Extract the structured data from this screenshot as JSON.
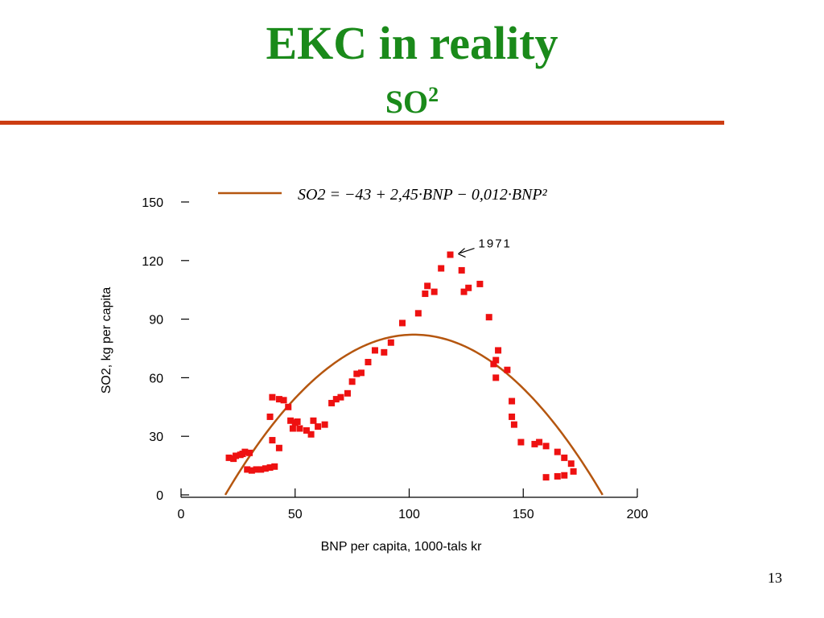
{
  "slide": {
    "title": "EKC in reality",
    "subtitle_base": "SO",
    "subtitle_sup": "2",
    "page_number": "13"
  },
  "colors": {
    "title": "#1a8a1a",
    "rule": "#cc3d12",
    "points": "#ee1111",
    "curve": "#b5560f"
  },
  "chart_data": {
    "type": "scatter",
    "title": "",
    "xlabel": "BNP per capita, 1000-tals kr",
    "ylabel": "SO2, kg per capita",
    "xlim": [
      0,
      200
    ],
    "ylim": [
      0,
      150
    ],
    "x_ticks": [
      "0",
      "50",
      "100",
      "150",
      "200"
    ],
    "y_ticks": [
      "0",
      "30",
      "60",
      "90",
      "120",
      "150"
    ],
    "legend": {
      "position": "top",
      "equation": "SO2 = −43 + 2,45·BNP − 0,012·BNP²",
      "series_type": "line"
    },
    "annotation": {
      "text": "1971",
      "x": 118,
      "y": 123
    },
    "fit_curve": {
      "intercept": -43,
      "linear": 2.45,
      "quadratic": -0.012
    },
    "points": [
      {
        "x": 21,
        "y": 19
      },
      {
        "x": 23,
        "y": 18.5
      },
      {
        "x": 24,
        "y": 20
      },
      {
        "x": 26,
        "y": 20.5
      },
      {
        "x": 27,
        "y": 21
      },
      {
        "x": 28,
        "y": 22
      },
      {
        "x": 30,
        "y": 21.5
      },
      {
        "x": 29,
        "y": 13
      },
      {
        "x": 31,
        "y": 12.5
      },
      {
        "x": 33,
        "y": 13
      },
      {
        "x": 35,
        "y": 13
      },
      {
        "x": 37,
        "y": 13.5
      },
      {
        "x": 39,
        "y": 14
      },
      {
        "x": 41,
        "y": 14.5
      },
      {
        "x": 40,
        "y": 28
      },
      {
        "x": 43,
        "y": 24
      },
      {
        "x": 39,
        "y": 40
      },
      {
        "x": 40,
        "y": 50
      },
      {
        "x": 43,
        "y": 49
      },
      {
        "x": 45,
        "y": 48.5
      },
      {
        "x": 47,
        "y": 45
      },
      {
        "x": 48,
        "y": 38
      },
      {
        "x": 49,
        "y": 34
      },
      {
        "x": 50,
        "y": 37
      },
      {
        "x": 51,
        "y": 37.5
      },
      {
        "x": 52,
        "y": 34
      },
      {
        "x": 55,
        "y": 33
      },
      {
        "x": 57,
        "y": 31
      },
      {
        "x": 58,
        "y": 38
      },
      {
        "x": 60,
        "y": 35
      },
      {
        "x": 63,
        "y": 36
      },
      {
        "x": 66,
        "y": 47
      },
      {
        "x": 68,
        "y": 49
      },
      {
        "x": 70,
        "y": 50
      },
      {
        "x": 73,
        "y": 52
      },
      {
        "x": 75,
        "y": 58
      },
      {
        "x": 77,
        "y": 62
      },
      {
        "x": 79,
        "y": 62.5
      },
      {
        "x": 82,
        "y": 68
      },
      {
        "x": 85,
        "y": 74
      },
      {
        "x": 89,
        "y": 73
      },
      {
        "x": 92,
        "y": 78
      },
      {
        "x": 97,
        "y": 88
      },
      {
        "x": 104,
        "y": 93
      },
      {
        "x": 107,
        "y": 103
      },
      {
        "x": 108,
        "y": 107
      },
      {
        "x": 111,
        "y": 104
      },
      {
        "x": 114,
        "y": 116
      },
      {
        "x": 118,
        "y": 123
      },
      {
        "x": 123,
        "y": 115
      },
      {
        "x": 124,
        "y": 104
      },
      {
        "x": 126,
        "y": 106
      },
      {
        "x": 131,
        "y": 108
      },
      {
        "x": 135,
        "y": 91
      },
      {
        "x": 137,
        "y": 67
      },
      {
        "x": 138,
        "y": 69
      },
      {
        "x": 139,
        "y": 74
      },
      {
        "x": 138,
        "y": 60
      },
      {
        "x": 143,
        "y": 64
      },
      {
        "x": 145,
        "y": 48
      },
      {
        "x": 145,
        "y": 40
      },
      {
        "x": 146,
        "y": 36
      },
      {
        "x": 149,
        "y": 27
      },
      {
        "x": 155,
        "y": 26
      },
      {
        "x": 157,
        "y": 27
      },
      {
        "x": 160,
        "y": 25
      },
      {
        "x": 165,
        "y": 22
      },
      {
        "x": 168,
        "y": 19
      },
      {
        "x": 171,
        "y": 16
      },
      {
        "x": 172,
        "y": 12
      },
      {
        "x": 168,
        "y": 10
      },
      {
        "x": 165,
        "y": 9.5
      },
      {
        "x": 160,
        "y": 9
      }
    ]
  }
}
